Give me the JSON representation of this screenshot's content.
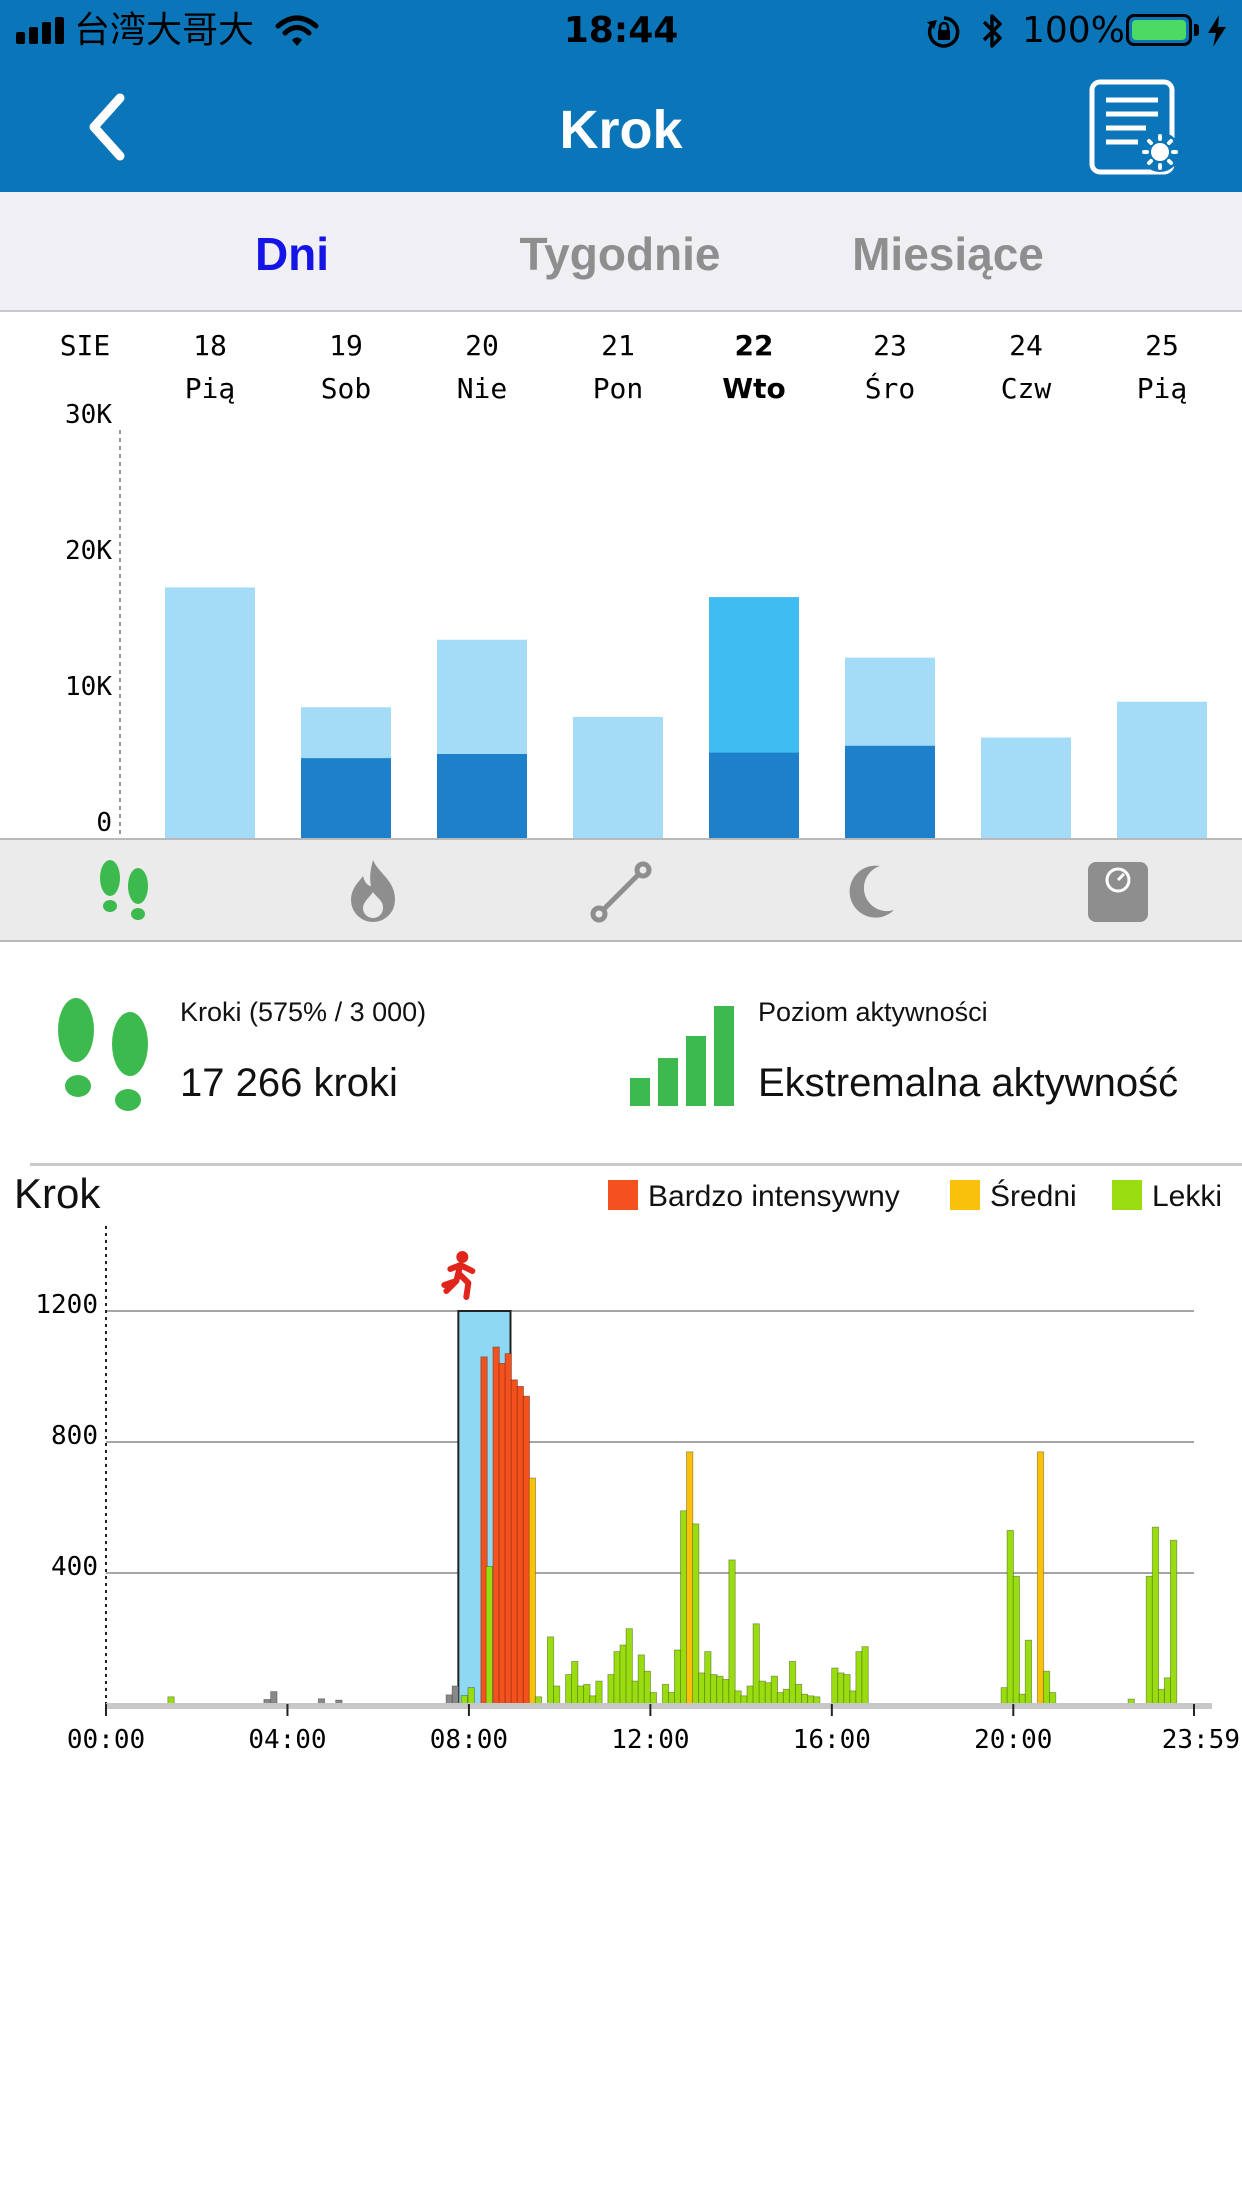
{
  "status_bar": {
    "carrier": "台湾大哥大",
    "time": "18:44",
    "battery": "100%",
    "battery_color": "#4cd964"
  },
  "nav": {
    "title": "Krok",
    "back_icon": "chevron-left-icon",
    "right_icon": "report-settings-icon",
    "bar_color": "#0b75b9"
  },
  "tabs": [
    {
      "label": "Dni",
      "active": true
    },
    {
      "label": "Tygodnie",
      "active": false
    },
    {
      "label": "Miesiące",
      "active": false
    }
  ],
  "week": {
    "month_label": "SIE",
    "days": [
      {
        "date": "18",
        "weekday": "Pią",
        "selected": false
      },
      {
        "date": "19",
        "weekday": "Sob",
        "selected": false
      },
      {
        "date": "20",
        "weekday": "Nie",
        "selected": false
      },
      {
        "date": "21",
        "weekday": "Pon",
        "selected": false
      },
      {
        "date": "22",
        "weekday": "Wto",
        "selected": true
      },
      {
        "date": "23",
        "weekday": "Śro",
        "selected": false
      },
      {
        "date": "24",
        "weekday": "Czw",
        "selected": false
      },
      {
        "date": "25",
        "weekday": "Pią",
        "selected": false
      }
    ],
    "y_ticks": [
      "30K",
      "20K",
      "10K",
      "0"
    ]
  },
  "metrics": [
    {
      "name": "steps-icon",
      "active": true
    },
    {
      "name": "calories-flame-icon",
      "active": false
    },
    {
      "name": "distance-icon",
      "active": false
    },
    {
      "name": "sleep-moon-icon",
      "active": false
    },
    {
      "name": "weight-scale-icon",
      "active": false
    }
  ],
  "summary": {
    "steps_label": "Kroki (575% / 3 000)",
    "steps_value": "17 266 kroki",
    "activity_label": "Poziom aktywności",
    "activity_value": "Ekstremalna aktywność"
  },
  "day": {
    "title": "Krok",
    "legend": [
      {
        "label": "Bardzo intensywny",
        "color": "#f4511e"
      },
      {
        "label": "Średni",
        "color": "#f9c10b"
      },
      {
        "label": "Lekki",
        "color": "#99dd11"
      }
    ],
    "x_ticks": [
      "00:00",
      "04:00",
      "08:00",
      "12:00",
      "16:00",
      "20:00",
      "23:59"
    ],
    "y_ticks": [
      "1200",
      "800",
      "400"
    ]
  },
  "chart_data": [
    {
      "type": "bar",
      "title": "",
      "categories": [
        "18 Pią",
        "19 Sob",
        "20 Nie",
        "21 Pon",
        "22 Wto",
        "23 Śro",
        "24 Czw",
        "25 Pią"
      ],
      "series": [
        {
          "values": [
            0,
            5800,
            6100,
            0,
            6200,
            6700,
            0,
            0
          ],
          "color": "#1e7fcb"
        },
        {
          "values": [
            18200,
            9500,
            14400,
            8800,
            17500,
            13100,
            7300,
            9900
          ],
          "color": "#a4dcf8"
        }
      ],
      "selected_color": "#40bdf0",
      "ylim": [
        0,
        30000
      ],
      "yticks": [
        0,
        10000,
        20000,
        30000
      ],
      "grid": false
    },
    {
      "type": "bar",
      "title": "Krok",
      "x_unit": "minutes since 00:00",
      "xlim": [
        0,
        1439
      ],
      "ylim": [
        0,
        1200
      ],
      "yticks": [
        400,
        800,
        1200
      ],
      "grid": true,
      "highlight_window": [
        466,
        535
      ],
      "highlight_color": "#8ed8f4",
      "level_colors": {
        "very_intensive": "#f4511e",
        "medium": "#f9c10b",
        "light": "#99dd11",
        "none": "#888888"
      },
      "bars": [
        {
          "x": 86,
          "y": 22,
          "level": "light"
        },
        {
          "x": 213,
          "y": 14,
          "level": "none"
        },
        {
          "x": 222,
          "y": 38,
          "level": "none"
        },
        {
          "x": 285,
          "y": 16,
          "level": "none"
        },
        {
          "x": 308,
          "y": 12,
          "level": "none"
        },
        {
          "x": 454,
          "y": 28,
          "level": "none"
        },
        {
          "x": 462,
          "y": 55,
          "level": "none"
        },
        {
          "x": 474,
          "y": 26,
          "level": "light"
        },
        {
          "x": 483,
          "y": 50,
          "level": "light"
        },
        {
          "x": 500,
          "y": 1060,
          "level": "very_intensive"
        },
        {
          "x": 507,
          "y": 420,
          "level": "light"
        },
        {
          "x": 516,
          "y": 1090,
          "level": "very_intensive"
        },
        {
          "x": 524,
          "y": 1040,
          "level": "very_intensive"
        },
        {
          "x": 532,
          "y": 1070,
          "level": "very_intensive"
        },
        {
          "x": 540,
          "y": 990,
          "level": "very_intensive"
        },
        {
          "x": 548,
          "y": 970,
          "level": "very_intensive"
        },
        {
          "x": 556,
          "y": 940,
          "level": "very_intensive"
        },
        {
          "x": 564,
          "y": 690,
          "level": "medium"
        },
        {
          "x": 572,
          "y": 22,
          "level": "light"
        },
        {
          "x": 588,
          "y": 205,
          "level": "light"
        },
        {
          "x": 596,
          "y": 55,
          "level": "light"
        },
        {
          "x": 612,
          "y": 90,
          "level": "light"
        },
        {
          "x": 620,
          "y": 130,
          "level": "light"
        },
        {
          "x": 628,
          "y": 55,
          "level": "light"
        },
        {
          "x": 636,
          "y": 60,
          "level": "light"
        },
        {
          "x": 644,
          "y": 25,
          "level": "light"
        },
        {
          "x": 652,
          "y": 70,
          "level": "light"
        },
        {
          "x": 668,
          "y": 90,
          "level": "light"
        },
        {
          "x": 676,
          "y": 160,
          "level": "light"
        },
        {
          "x": 684,
          "y": 180,
          "level": "light"
        },
        {
          "x": 692,
          "y": 230,
          "level": "light"
        },
        {
          "x": 700,
          "y": 70,
          "level": "light"
        },
        {
          "x": 708,
          "y": 150,
          "level": "light"
        },
        {
          "x": 716,
          "y": 100,
          "level": "light"
        },
        {
          "x": 724,
          "y": 35,
          "level": "light"
        },
        {
          "x": 740,
          "y": 60,
          "level": "light"
        },
        {
          "x": 748,
          "y": 35,
          "level": "light"
        },
        {
          "x": 756,
          "y": 165,
          "level": "light"
        },
        {
          "x": 764,
          "y": 590,
          "level": "light"
        },
        {
          "x": 772,
          "y": 770,
          "level": "medium"
        },
        {
          "x": 780,
          "y": 550,
          "level": "light"
        },
        {
          "x": 788,
          "y": 95,
          "level": "light"
        },
        {
          "x": 796,
          "y": 160,
          "level": "light"
        },
        {
          "x": 804,
          "y": 90,
          "level": "light"
        },
        {
          "x": 812,
          "y": 85,
          "level": "light"
        },
        {
          "x": 820,
          "y": 75,
          "level": "light"
        },
        {
          "x": 828,
          "y": 440,
          "level": "light"
        },
        {
          "x": 836,
          "y": 40,
          "level": "light"
        },
        {
          "x": 844,
          "y": 25,
          "level": "light"
        },
        {
          "x": 852,
          "y": 55,
          "level": "light"
        },
        {
          "x": 860,
          "y": 245,
          "level": "light"
        },
        {
          "x": 868,
          "y": 70,
          "level": "light"
        },
        {
          "x": 876,
          "y": 65,
          "level": "light"
        },
        {
          "x": 884,
          "y": 85,
          "level": "light"
        },
        {
          "x": 892,
          "y": 35,
          "level": "light"
        },
        {
          "x": 900,
          "y": 45,
          "level": "light"
        },
        {
          "x": 908,
          "y": 130,
          "level": "light"
        },
        {
          "x": 916,
          "y": 60,
          "level": "light"
        },
        {
          "x": 924,
          "y": 30,
          "level": "light"
        },
        {
          "x": 932,
          "y": 25,
          "level": "light"
        },
        {
          "x": 940,
          "y": 22,
          "level": "light"
        },
        {
          "x": 964,
          "y": 110,
          "level": "light"
        },
        {
          "x": 972,
          "y": 95,
          "level": "light"
        },
        {
          "x": 980,
          "y": 90,
          "level": "light"
        },
        {
          "x": 988,
          "y": 40,
          "level": "light"
        },
        {
          "x": 996,
          "y": 160,
          "level": "light"
        },
        {
          "x": 1004,
          "y": 175,
          "level": "light"
        },
        {
          "x": 1188,
          "y": 50,
          "level": "light"
        },
        {
          "x": 1196,
          "y": 530,
          "level": "light"
        },
        {
          "x": 1204,
          "y": 390,
          "level": "light"
        },
        {
          "x": 1212,
          "y": 30,
          "level": "light"
        },
        {
          "x": 1220,
          "y": 195,
          "level": "light"
        },
        {
          "x": 1236,
          "y": 770,
          "level": "medium"
        },
        {
          "x": 1244,
          "y": 100,
          "level": "light"
        },
        {
          "x": 1252,
          "y": 35,
          "level": "light"
        },
        {
          "x": 1356,
          "y": 15,
          "level": "light"
        },
        {
          "x": 1380,
          "y": 390,
          "level": "light"
        },
        {
          "x": 1388,
          "y": 540,
          "level": "light"
        },
        {
          "x": 1396,
          "y": 45,
          "level": "light"
        },
        {
          "x": 1404,
          "y": 80,
          "level": "light"
        },
        {
          "x": 1412,
          "y": 500,
          "level": "light"
        }
      ]
    }
  ]
}
